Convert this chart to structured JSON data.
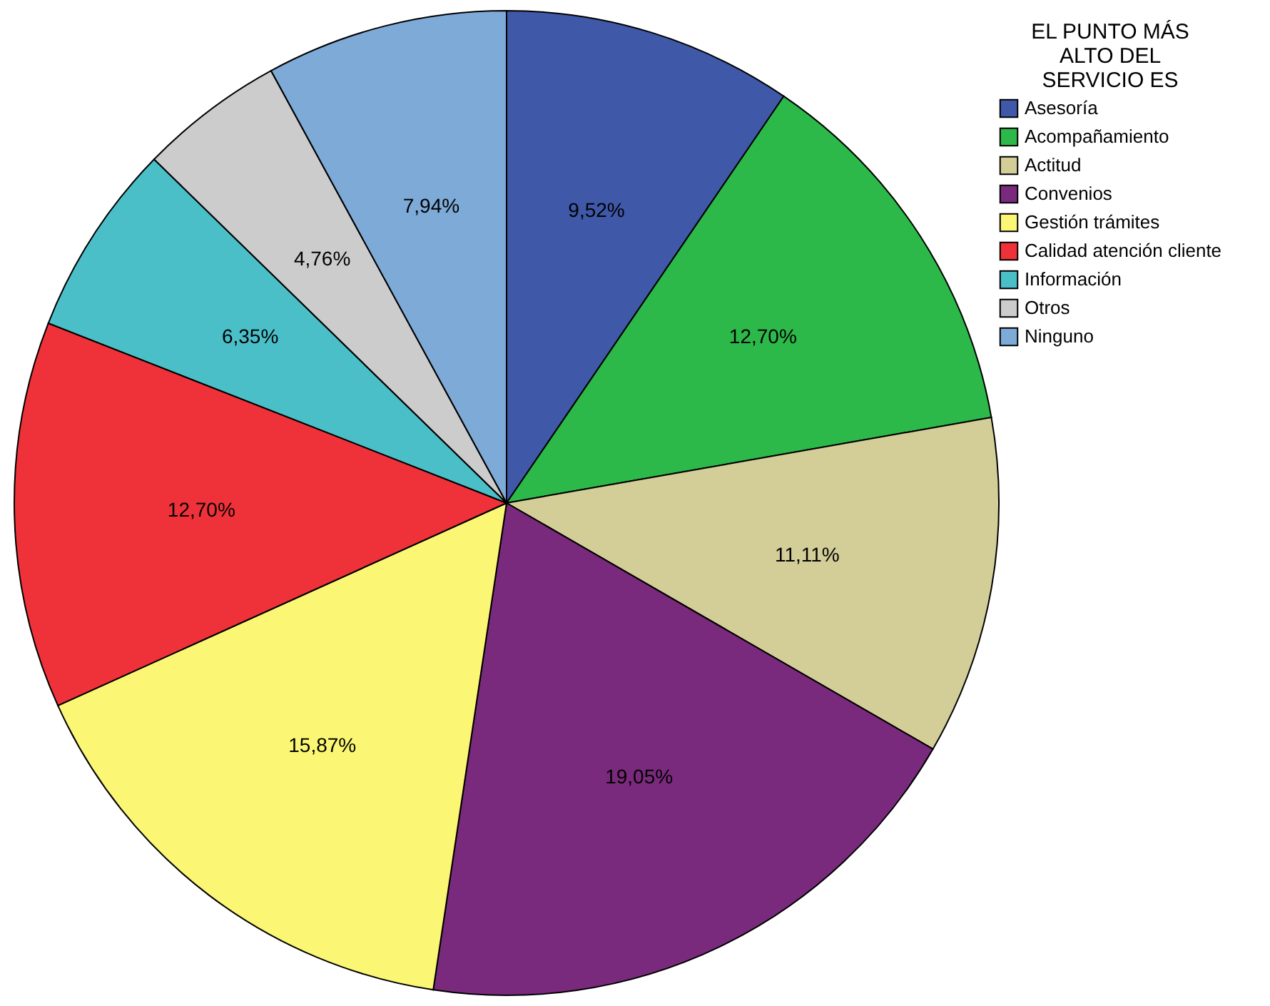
{
  "chart_data": {
    "type": "pie",
    "legend_title": "EL PUNTO MÁS ALTO DEL SERVICIO ES",
    "legend": "top right",
    "categories": [
      "Asesoría",
      "Acompañamiento",
      "Actitud",
      "Convenios",
      "Gestión trámites",
      "Calidad atención cliente",
      "Información",
      "Otros",
      "Ninguno"
    ],
    "values": [
      9.52,
      12.7,
      11.11,
      19.05,
      15.87,
      12.7,
      6.35,
      4.76,
      7.94
    ],
    "value_labels": [
      "9,52%",
      "12,70%",
      "11,11%",
      "19,05%",
      "15,87%",
      "12,70%",
      "6,35%",
      "4,76%",
      "7,94%"
    ],
    "colors": [
      "#3f58a8",
      "#2db84a",
      "#d3cd98",
      "#7a2a7c",
      "#fbf674",
      "#ef3239",
      "#4bbfc8",
      "#cccccc",
      "#7eaad8"
    ]
  }
}
